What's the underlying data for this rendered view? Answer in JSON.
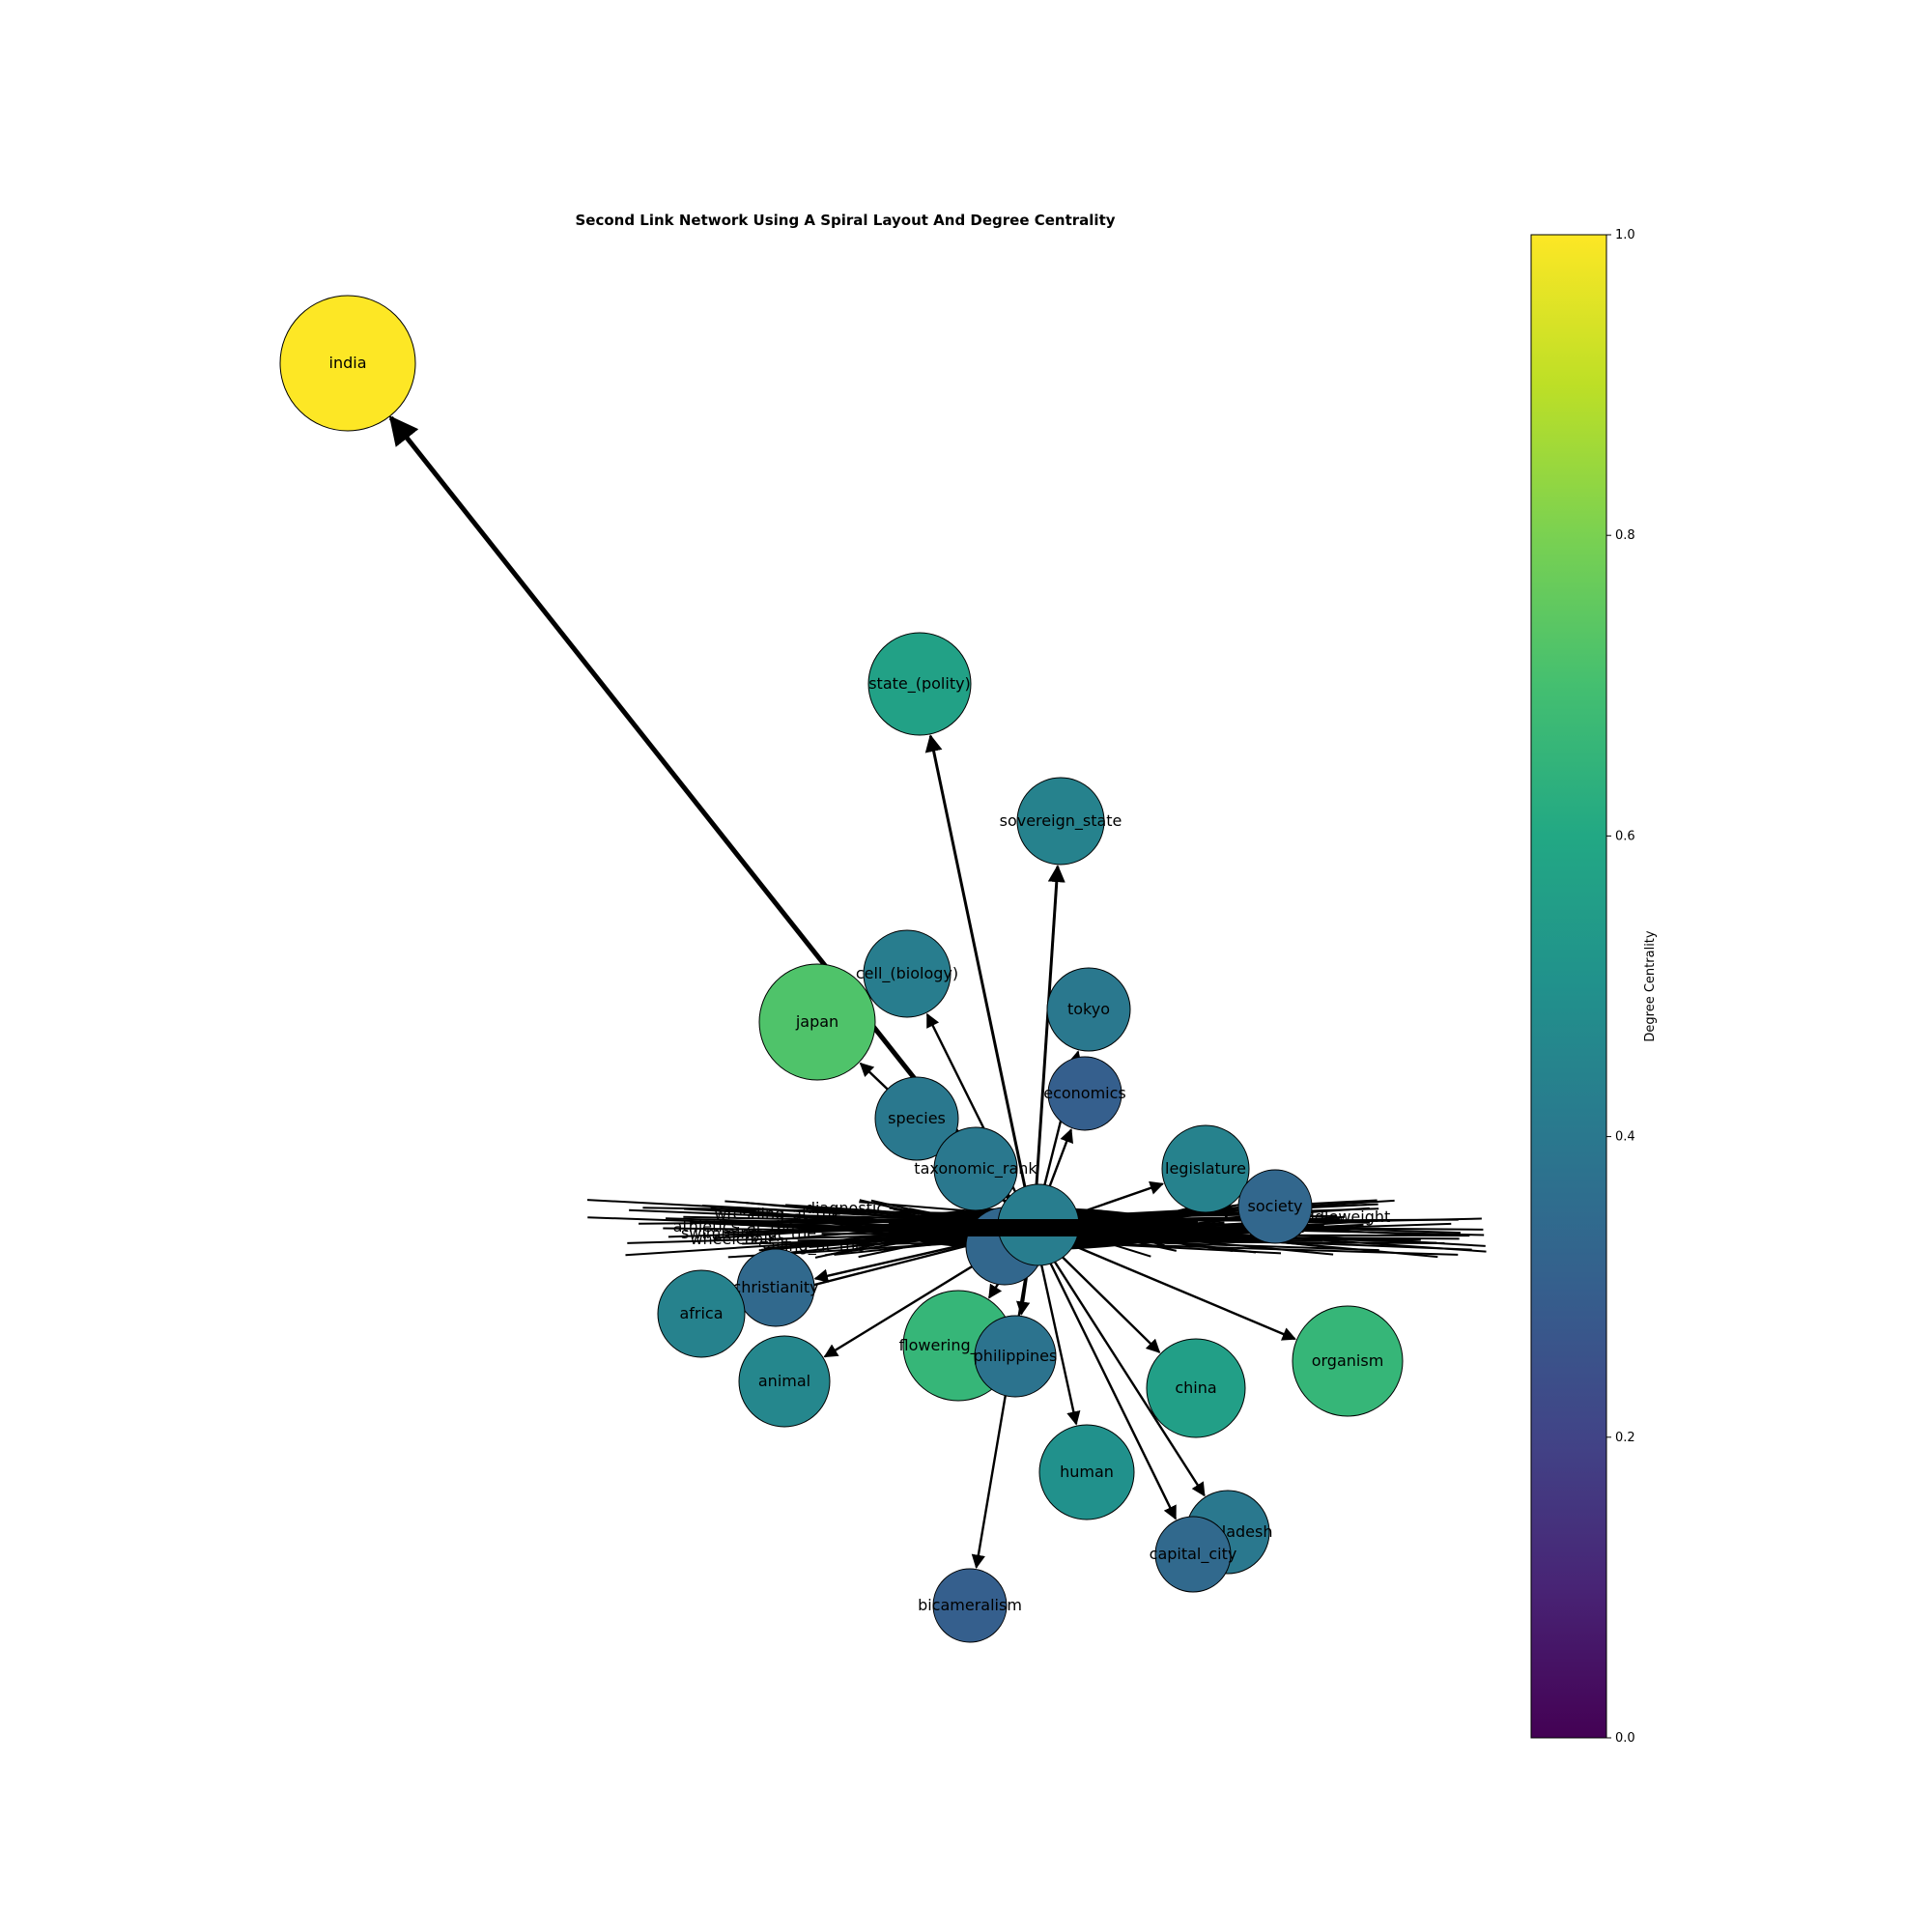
{
  "title": "Second Link Network Using A Spiral Layout And Degree Centrality",
  "colorbar": {
    "label": "Degree Centrality",
    "ticks": [
      "0.0",
      "0.2",
      "0.4",
      "0.6",
      "0.8",
      "1.0"
    ],
    "range": [
      0,
      1
    ],
    "colormap": "viridis"
  },
  "nodes": [
    {
      "id": "india",
      "label": "india",
      "centrality": 1.0
    },
    {
      "id": "japan",
      "label": "japan",
      "centrality": 0.72
    },
    {
      "id": "state_polity",
      "label": "state_(polity)",
      "centrality": 0.57
    },
    {
      "id": "sovereign_state",
      "label": "sovereign_state",
      "centrality": 0.44
    },
    {
      "id": "cell_biology",
      "label": "cell_(biology)",
      "centrality": 0.42
    },
    {
      "id": "tokyo",
      "label": "tokyo",
      "centrality": 0.4
    },
    {
      "id": "economics",
      "label": "economics",
      "centrality": 0.3
    },
    {
      "id": "species",
      "label": "species",
      "centrality": 0.4
    },
    {
      "id": "taxonomic_rank",
      "label": "taxonomic_rank",
      "centrality": 0.4
    },
    {
      "id": "legislature",
      "label": "legislature",
      "centrality": 0.44
    },
    {
      "id": "society",
      "label": "society",
      "centrality": 0.33
    },
    {
      "id": "christianity",
      "label": "christianity",
      "centrality": 0.34
    },
    {
      "id": "africa",
      "label": "africa",
      "centrality": 0.44
    },
    {
      "id": "animal",
      "label": "animal",
      "centrality": 0.46
    },
    {
      "id": "flowering_plant",
      "label": "flowering_plant",
      "centrality": 0.66
    },
    {
      "id": "philippines",
      "label": "philippines",
      "centrality": 0.38
    },
    {
      "id": "china",
      "label": "china",
      "centrality": 0.56
    },
    {
      "id": "organism",
      "label": "organism",
      "centrality": 0.66
    },
    {
      "id": "human",
      "label": "human",
      "centrality": 0.5
    },
    {
      "id": "bangladesh",
      "label": "bangladesh",
      "centrality": 0.4
    },
    {
      "id": "capital_city",
      "label": "capital_city",
      "centrality": 0.34
    },
    {
      "id": "bicameralism",
      "label": "bicameralism",
      "centrality": 0.3
    }
  ],
  "hub_labels": [
    "wrestling_at_the",
    "diagnostic",
    "athletics_at_the",
    "swimming_at_the",
    "wheelchair",
    "sailing_at_the",
    "middleweight",
    "_470"
  ]
}
